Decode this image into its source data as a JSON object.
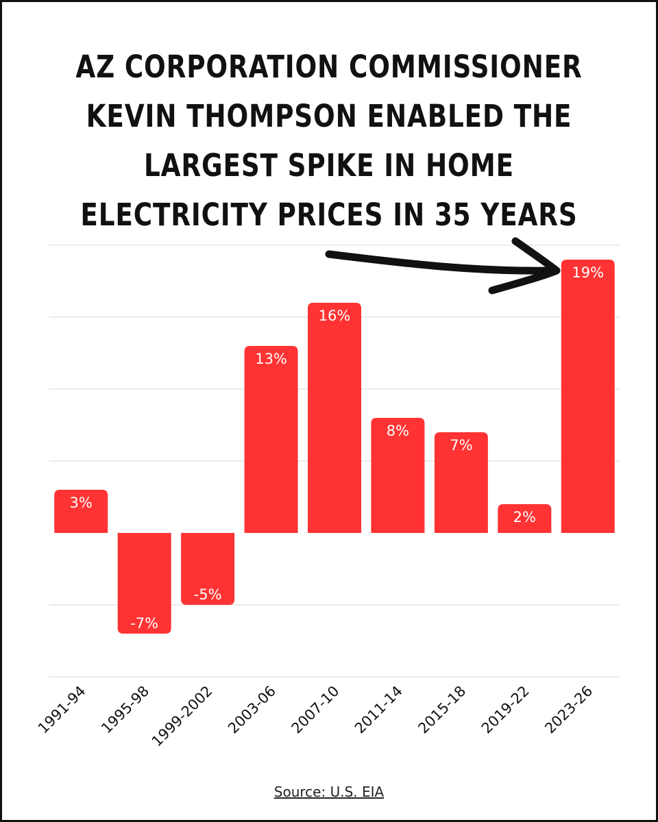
{
  "title_lines": [
    "AZ Corporation Commissioner",
    "Kevin Thompson enabled the",
    "largest spike in home",
    "electricity prices in 35 years"
  ],
  "source": "Source: U.S. EIA",
  "colors": {
    "bar": "#ff3333",
    "grid": "#d9d9d9",
    "text": "#111111",
    "label": "#ffffff"
  },
  "chart_data": {
    "type": "bar",
    "categories": [
      "1991-94",
      "1995-98",
      "1999-2002",
      "2003-06",
      "2007-10",
      "2011-14",
      "2015-18",
      "2019-22",
      "2023-26"
    ],
    "values": [
      3,
      -7,
      -5,
      13,
      16,
      8,
      7,
      2,
      19
    ],
    "data_labels": [
      "3%",
      "-7%",
      "-5%",
      "13%",
      "16%",
      "8%",
      "7%",
      "2%",
      "19%"
    ],
    "title": "",
    "xlabel": "",
    "ylabel": "",
    "ylim": [
      -10,
      20
    ],
    "grid": true,
    "legend": "none",
    "annotations": [
      "arrow pointing to 2023-26 bar"
    ]
  }
}
